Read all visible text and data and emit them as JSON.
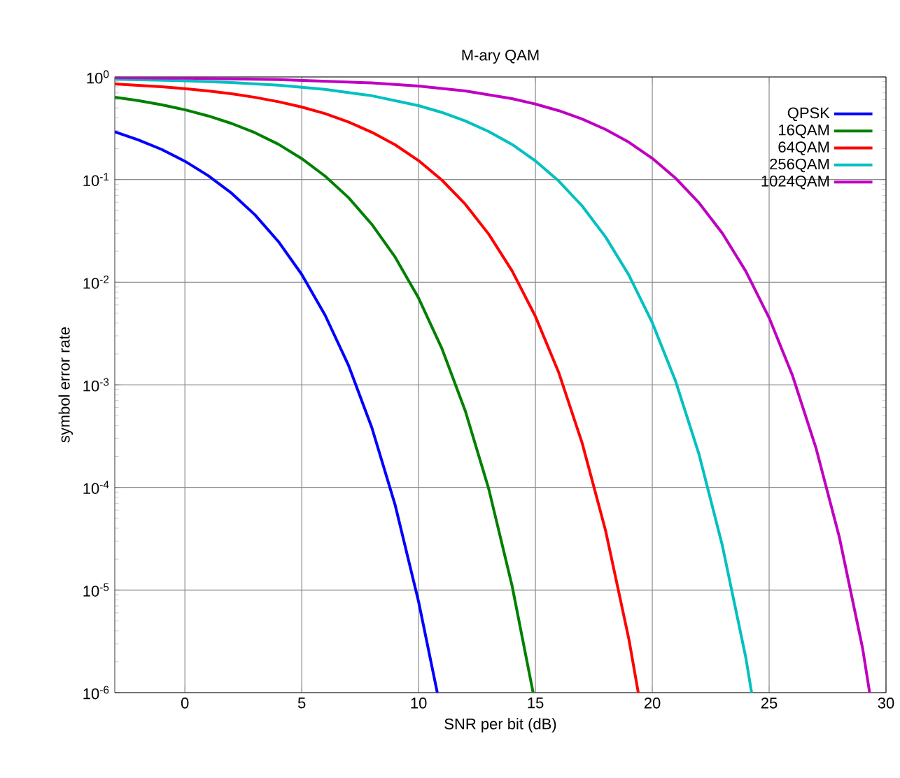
{
  "chart_data": {
    "type": "line",
    "title": "M-ary QAM",
    "xlabel": "SNR per bit (dB)",
    "ylabel": "symbol error rate",
    "xlim": [
      -3,
      30
    ],
    "ylim": [
      1e-06,
      1
    ],
    "log": "y",
    "grid": true,
    "legend": "top right",
    "marker": "none",
    "line_style": "solid",
    "xticks": [
      0,
      5,
      10,
      15,
      20,
      25,
      30
    ],
    "yticks": [
      {
        "value": 1e-06,
        "label": "10$^{-6}$"
      },
      {
        "value": 1e-05,
        "label": "10$^{-5}$"
      },
      {
        "value": 0.0001,
        "label": "10$^{-4}$"
      },
      {
        "value": 0.001,
        "label": "10$^{-3}$"
      },
      {
        "value": 0.01,
        "label": "10$^{-2}$"
      },
      {
        "value": 0.1,
        "label": "10$^{-1}$"
      },
      {
        "value": 1,
        "label": "10$^{0}$"
      }
    ],
    "series": [
      {
        "name": "QPSK",
        "color": "#0000ff",
        "x": [
          -3,
          -2,
          -1,
          0,
          1,
          2,
          3,
          4,
          5,
          6,
          7,
          8,
          9,
          10,
          10.8
        ],
        "values": [
          0.292,
          0.244,
          0.197,
          0.151,
          0.109,
          0.0736,
          0.0453,
          0.0249,
          0.0119,
          0.00477,
          0.00155,
          0.000382,
          6.7e-05,
          7.7e-06,
          1e-06
        ]
      },
      {
        "name": "16QAM",
        "color": "#008000",
        "x": [
          -3,
          -2,
          -1,
          0,
          1,
          2,
          3,
          4,
          5,
          6,
          7,
          8,
          9,
          10,
          11,
          12,
          13,
          14,
          14.9
        ],
        "values": [
          0.634,
          0.588,
          0.536,
          0.479,
          0.417,
          0.352,
          0.286,
          0.221,
          0.16,
          0.108,
          0.0668,
          0.0366,
          0.0175,
          0.007,
          0.00225,
          0.000555,
          9.7e-05,
          1.1e-05,
          1e-06
        ]
      },
      {
        "name": "64QAM",
        "color": "#ff0000",
        "x": [
          -3,
          -2,
          -1,
          0,
          1,
          2,
          3,
          4,
          5,
          6,
          7,
          8,
          9,
          10,
          11,
          12,
          13,
          14,
          15,
          16,
          17,
          18,
          19,
          19.4
        ],
        "values": [
          0.853,
          0.829,
          0.802,
          0.769,
          0.73,
          0.685,
          0.633,
          0.574,
          0.509,
          0.439,
          0.364,
          0.289,
          0.218,
          0.153,
          0.0987,
          0.0575,
          0.0294,
          0.0129,
          0.00463,
          0.00131,
          0.00027,
          3.8e-05,
          3.3e-06,
          1e-06
        ]
      },
      {
        "name": "256QAM",
        "color": "#00c0c0",
        "x": [
          -3,
          0,
          2,
          4,
          6,
          8,
          10,
          11,
          12,
          13,
          14,
          15,
          16,
          17,
          18,
          19,
          20,
          21,
          22,
          23,
          24,
          24.25
        ],
        "values": [
          0.95,
          0.917,
          0.881,
          0.83,
          0.757,
          0.656,
          0.525,
          0.451,
          0.373,
          0.294,
          0.22,
          0.152,
          0.0967,
          0.0552,
          0.0276,
          0.0117,
          0.00403,
          0.00108,
          0.00021,
          2.7e-05,
          2.2e-06,
          1e-06
        ]
      },
      {
        "name": "1024QAM",
        "color": "#c000c0",
        "x": [
          -3,
          0,
          4,
          8,
          10,
          12,
          14,
          15,
          16,
          17,
          18,
          19,
          20,
          21,
          22,
          23,
          24,
          25,
          26,
          27,
          28,
          29,
          29.3
        ],
        "values": [
          0.984,
          0.973,
          0.943,
          0.875,
          0.815,
          0.73,
          0.614,
          0.544,
          0.469,
          0.389,
          0.308,
          0.231,
          0.161,
          0.103,
          0.0593,
          0.0299,
          0.0128,
          0.00449,
          0.00123,
          0.000244,
          3.3e-05,
          2.7e-06,
          1e-06
        ]
      }
    ]
  }
}
